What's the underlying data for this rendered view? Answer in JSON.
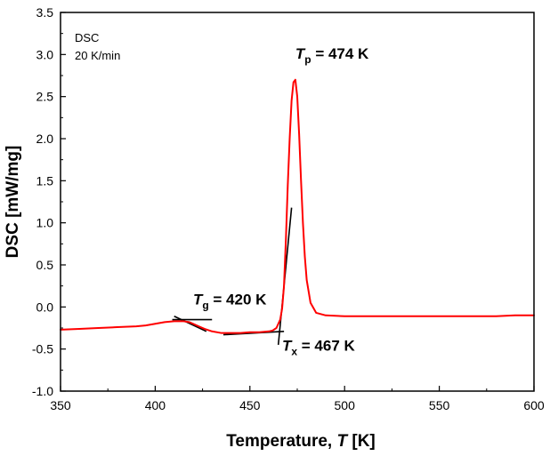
{
  "chart_data": {
    "type": "line",
    "title": "",
    "xlabel": "Temperature, ",
    "xlabel_symbol": "T",
    "xlabel_unit": " [K]",
    "ylabel": "DSC [mW/mg]",
    "xlim": [
      350,
      600
    ],
    "ylim": [
      -1.0,
      3.5
    ],
    "x_ticks": [
      350,
      400,
      450,
      500,
      550,
      600
    ],
    "x_tick_labels": [
      "350",
      "400",
      "450",
      "500",
      "550",
      "600"
    ],
    "y_ticks": [
      -1.0,
      -0.5,
      0.0,
      0.5,
      1.0,
      1.5,
      2.0,
      2.5,
      3.0,
      3.5
    ],
    "y_tick_labels": [
      "-1.0",
      "-0.5",
      "0.0",
      "0.5",
      "1.0",
      "1.5",
      "2.0",
      "2.5",
      "3.0",
      "3.5"
    ],
    "grid": false,
    "notes": [
      "DSC",
      "20 K/min"
    ],
    "series": [
      {
        "name": "DSC 20 K/min",
        "color": "#ff0000",
        "x": [
          350,
          360,
          370,
          380,
          390,
          395,
          400,
          405,
          410,
          412,
          415,
          418,
          420,
          423,
          426,
          430,
          435,
          440,
          445,
          450,
          455,
          460,
          462,
          464,
          466,
          467,
          468,
          469,
          470,
          471,
          472,
          473,
          474,
          475,
          476,
          477,
          478,
          479,
          480,
          482,
          485,
          490,
          500,
          510,
          520,
          530,
          540,
          550,
          560,
          570,
          580,
          590,
          600
        ],
        "y": [
          -0.27,
          -0.26,
          -0.25,
          -0.24,
          -0.23,
          -0.22,
          -0.2,
          -0.18,
          -0.17,
          -0.17,
          -0.17,
          -0.18,
          -0.2,
          -0.23,
          -0.26,
          -0.29,
          -0.31,
          -0.31,
          -0.31,
          -0.3,
          -0.3,
          -0.29,
          -0.28,
          -0.25,
          -0.15,
          -0.02,
          0.25,
          0.8,
          1.45,
          2.0,
          2.45,
          2.67,
          2.7,
          2.5,
          2.05,
          1.5,
          1.0,
          0.6,
          0.32,
          0.05,
          -0.07,
          -0.1,
          -0.11,
          -0.11,
          -0.11,
          -0.11,
          -0.11,
          -0.11,
          -0.11,
          -0.11,
          -0.11,
          -0.1,
          -0.1
        ]
      }
    ],
    "tangent_lines": [
      {
        "name": "tg-tangent-1",
        "x": [
          410,
          427
        ],
        "y": [
          -0.11,
          -0.29
        ]
      },
      {
        "name": "tg-tangent-2",
        "x": [
          409,
          430
        ],
        "y": [
          -0.15,
          -0.15
        ]
      },
      {
        "name": "tx-baseline",
        "x": [
          436,
          468
        ],
        "y": [
          -0.33,
          -0.29
        ]
      },
      {
        "name": "tx-onset-line",
        "x": [
          465,
          472
        ],
        "y": [
          -0.45,
          1.18
        ]
      }
    ],
    "annotations": [
      {
        "name": "tp-annotation",
        "symbol": "T",
        "sub": "p",
        "text": " = 474 K",
        "x": 474,
        "y": 2.95
      },
      {
        "name": "tg-annotation",
        "symbol": "T",
        "sub": "g",
        "text": " = 420 K",
        "x": 420,
        "y": 0.03
      },
      {
        "name": "tx-annotation",
        "symbol": "T",
        "sub": "x",
        "text": " = 467 K",
        "x": 467,
        "y": -0.52
      }
    ]
  }
}
